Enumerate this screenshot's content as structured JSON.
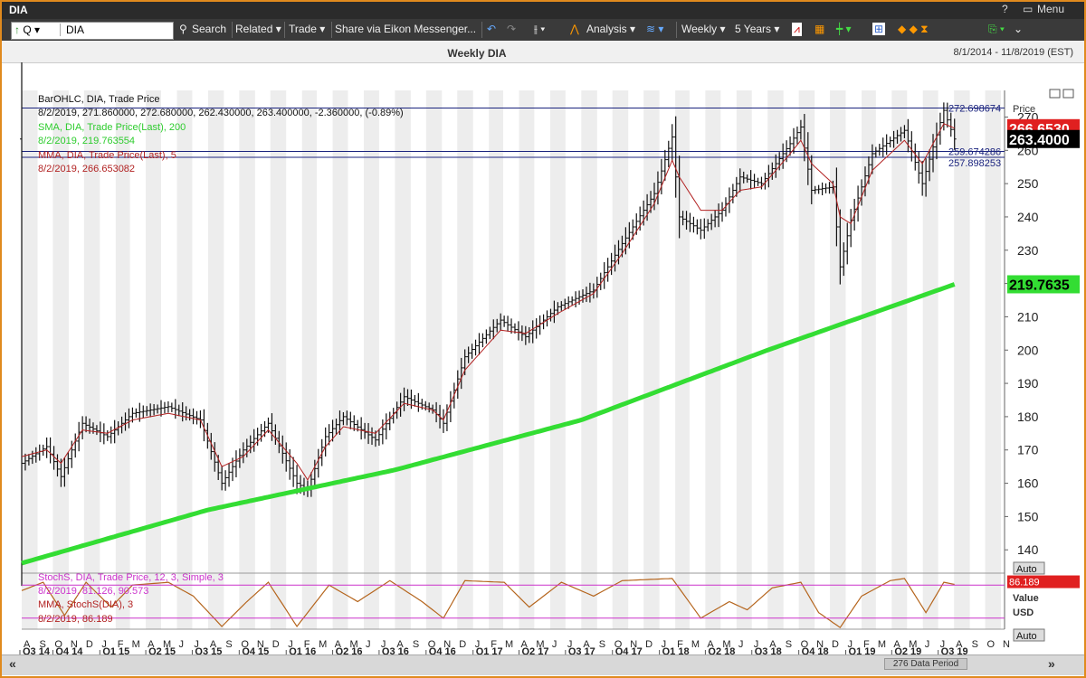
{
  "window": {
    "title": "DIA",
    "menu_label": "Menu",
    "controls": [
      "?",
      "−",
      "□",
      "✕"
    ]
  },
  "toolbar": {
    "ric_prefix": "Q",
    "ric_value": "DIA",
    "search": "Search",
    "related": "Related",
    "trade": "Trade",
    "share": "Share via Eikon Messenger...",
    "analysis": "Analysis",
    "interval": "Weekly",
    "period": "5 Years"
  },
  "chart_header": {
    "title": "Weekly DIA",
    "date_range": "8/1/2014 - 11/8/2019 (EST)"
  },
  "legend_main": {
    "line1": "BarOHLC, DIA, Trade Price",
    "line2": "8/2/2019, 271.860000, 272.680000, 262.430000, 263.400000, -2.360000, (-0.89%)",
    "line3": "SMA, DIA, Trade Price(Last), 200",
    "line4": "8/2/2019, 219.763554",
    "line5": "MMA, DIA, Trade Price(Last), 5",
    "line6": "8/2/2019, 266.653082"
  },
  "legend_stoch": {
    "line1": "StochS, DIA, Trade Price, 12, 3, Simple, 3",
    "line2": "8/2/2019, 81.126, 90.573",
    "line3": "MMA, StochS(DIA), 3",
    "line4": "8/2/2019, 86.189"
  },
  "price_axis": {
    "header": "Price",
    "currency": "USD",
    "ticks": [
      "140",
      "150",
      "160",
      "170",
      "180",
      "190",
      "200",
      "210",
      "220",
      "230",
      "240",
      "250",
      "260",
      "270"
    ],
    "labels": {
      "mma": "266.6530",
      "last": "263.4000",
      "sma": "219.7635",
      "hline1": "272.698674",
      "hline2": "259.674286",
      "hline3": "257.898253"
    },
    "auto": "Auto"
  },
  "stoch_axis": {
    "mma_value": "86.189",
    "value_label": "Value",
    "currency": "USD",
    "auto": "Auto"
  },
  "colors": {
    "price_bars": "#111111",
    "mma": "#b22222",
    "sma": "#33dd33",
    "stoch": "#b5651d",
    "stoch_levels": "#cc33cc",
    "hlines": "#1a237e"
  },
  "footer": {
    "data_period": "276 Data Period"
  },
  "chart_data": {
    "type": "line",
    "title": "Weekly DIA",
    "ylim": [
      133,
      278
    ],
    "yticks": [
      140,
      150,
      160,
      170,
      180,
      190,
      200,
      210,
      220,
      230,
      240,
      250,
      260,
      270
    ],
    "month_ticks": [
      "A",
      "S",
      "O",
      "N",
      "D",
      "J",
      "F",
      "M",
      "A",
      "M",
      "J",
      "J",
      "A",
      "S",
      "O",
      "N",
      "D",
      "J",
      "F",
      "M",
      "A",
      "M",
      "J",
      "J",
      "A",
      "S",
      "O",
      "N",
      "D",
      "J",
      "F",
      "M",
      "A",
      "M",
      "J",
      "J",
      "A",
      "S",
      "O",
      "N",
      "D",
      "J",
      "F",
      "M",
      "A",
      "M",
      "J",
      "J",
      "A",
      "S",
      "O",
      "N",
      "D",
      "J",
      "F",
      "M",
      "A",
      "M",
      "J",
      "J",
      "A",
      "S",
      "O",
      "N"
    ],
    "quarter_labels": [
      "Q3 14",
      "Q4 14",
      "Q1 15",
      "Q2 15",
      "Q3 15",
      "Q4 15",
      "Q1 16",
      "Q2 16",
      "Q3 16",
      "Q4 16",
      "Q1 17",
      "Q2 17",
      "Q3 17",
      "Q4 17",
      "Q1 18",
      "Q2 18",
      "Q3 18",
      "Q4 18",
      "Q1 19",
      "Q2 19",
      "Q3 19"
    ],
    "price_anchors": [
      {
        "date": "2014-08-01",
        "value": 166
      },
      {
        "date": "2014-09-19",
        "value": 171
      },
      {
        "date": "2014-10-17",
        "value": 162
      },
      {
        "date": "2014-11-28",
        "value": 178
      },
      {
        "date": "2015-01-16",
        "value": 174
      },
      {
        "date": "2015-03-06",
        "value": 181
      },
      {
        "date": "2015-05-15",
        "value": 183
      },
      {
        "date": "2015-07-17",
        "value": 179
      },
      {
        "date": "2015-08-28",
        "value": 160
      },
      {
        "date": "2015-10-09",
        "value": 170
      },
      {
        "date": "2015-11-27",
        "value": 178
      },
      {
        "date": "2016-01-22",
        "value": 160
      },
      {
        "date": "2016-02-12",
        "value": 158
      },
      {
        "date": "2016-03-18",
        "value": 174
      },
      {
        "date": "2016-04-22",
        "value": 180
      },
      {
        "date": "2016-06-24",
        "value": 173
      },
      {
        "date": "2016-08-19",
        "value": 186
      },
      {
        "date": "2016-10-14",
        "value": 182
      },
      {
        "date": "2016-11-04",
        "value": 178
      },
      {
        "date": "2016-12-16",
        "value": 198
      },
      {
        "date": "2017-02-24",
        "value": 209
      },
      {
        "date": "2017-04-14",
        "value": 204
      },
      {
        "date": "2017-06-16",
        "value": 213
      },
      {
        "date": "2017-08-25",
        "value": 218
      },
      {
        "date": "2017-10-20",
        "value": 232
      },
      {
        "date": "2017-12-22",
        "value": 247
      },
      {
        "date": "2018-01-26",
        "value": 264
      },
      {
        "date": "2018-02-09",
        "value": 240
      },
      {
        "date": "2018-03-23",
        "value": 236
      },
      {
        "date": "2018-05-04",
        "value": 242
      },
      {
        "date": "2018-06-08",
        "value": 252
      },
      {
        "date": "2018-07-20",
        "value": 250
      },
      {
        "date": "2018-09-14",
        "value": 262
      },
      {
        "date": "2018-10-05",
        "value": 267
      },
      {
        "date": "2018-10-26",
        "value": 248
      },
      {
        "date": "2018-12-07",
        "value": 249
      },
      {
        "date": "2018-12-21",
        "value": 225
      },
      {
        "date": "2019-01-11",
        "value": 239
      },
      {
        "date": "2019-02-22",
        "value": 259
      },
      {
        "date": "2019-04-26",
        "value": 266
      },
      {
        "date": "2019-05-31",
        "value": 250
      },
      {
        "date": "2019-07-12",
        "value": 272
      },
      {
        "date": "2019-08-02",
        "value": 263.4
      }
    ],
    "mma_anchors": [
      {
        "date": "2014-08-01",
        "value": 168
      },
      {
        "date": "2014-09-19",
        "value": 170
      },
      {
        "date": "2014-10-17",
        "value": 166
      },
      {
        "date": "2014-11-28",
        "value": 176
      },
      {
        "date": "2015-01-16",
        "value": 175
      },
      {
        "date": "2015-03-06",
        "value": 179
      },
      {
        "date": "2015-05-15",
        "value": 181
      },
      {
        "date": "2015-07-17",
        "value": 179
      },
      {
        "date": "2015-08-28",
        "value": 165
      },
      {
        "date": "2015-10-09",
        "value": 168
      },
      {
        "date": "2015-11-27",
        "value": 176
      },
      {
        "date": "2016-01-22",
        "value": 166
      },
      {
        "date": "2016-02-12",
        "value": 161
      },
      {
        "date": "2016-03-18",
        "value": 171
      },
      {
        "date": "2016-04-22",
        "value": 177
      },
      {
        "date": "2016-06-24",
        "value": 175
      },
      {
        "date": "2016-08-19",
        "value": 184
      },
      {
        "date": "2016-10-14",
        "value": 182
      },
      {
        "date": "2016-11-04",
        "value": 179
      },
      {
        "date": "2016-12-16",
        "value": 194
      },
      {
        "date": "2017-02-24",
        "value": 206
      },
      {
        "date": "2017-04-14",
        "value": 205
      },
      {
        "date": "2017-06-16",
        "value": 211
      },
      {
        "date": "2017-08-25",
        "value": 217
      },
      {
        "date": "2017-10-20",
        "value": 229
      },
      {
        "date": "2017-12-22",
        "value": 244
      },
      {
        "date": "2018-01-26",
        "value": 257
      },
      {
        "date": "2018-02-09",
        "value": 252
      },
      {
        "date": "2018-03-23",
        "value": 242
      },
      {
        "date": "2018-05-04",
        "value": 242
      },
      {
        "date": "2018-06-08",
        "value": 248
      },
      {
        "date": "2018-07-20",
        "value": 249
      },
      {
        "date": "2018-09-14",
        "value": 259
      },
      {
        "date": "2018-10-05",
        "value": 263
      },
      {
        "date": "2018-10-26",
        "value": 256
      },
      {
        "date": "2018-12-07",
        "value": 250
      },
      {
        "date": "2018-12-21",
        "value": 240
      },
      {
        "date": "2019-01-11",
        "value": 238
      },
      {
        "date": "2019-02-22",
        "value": 254
      },
      {
        "date": "2019-04-26",
        "value": 263
      },
      {
        "date": "2019-05-31",
        "value": 256
      },
      {
        "date": "2019-07-12",
        "value": 268
      },
      {
        "date": "2019-08-02",
        "value": 266.65
      }
    ],
    "sma_200": [
      {
        "date": "2014-08-01",
        "value": 136
      },
      {
        "date": "2015-08-01",
        "value": 152
      },
      {
        "date": "2016-08-01",
        "value": 164
      },
      {
        "date": "2017-08-01",
        "value": 179
      },
      {
        "date": "2018-08-01",
        "value": 200
      },
      {
        "date": "2019-08-02",
        "value": 219.76
      }
    ],
    "stoch_anchors": [
      {
        "date": "2014-08-01",
        "value": 70
      },
      {
        "date": "2014-09-12",
        "value": 85
      },
      {
        "date": "2014-10-24",
        "value": 25
      },
      {
        "date": "2014-12-05",
        "value": 85
      },
      {
        "date": "2015-01-23",
        "value": 40
      },
      {
        "date": "2015-03-06",
        "value": 80
      },
      {
        "date": "2015-05-15",
        "value": 85
      },
      {
        "date": "2015-07-03",
        "value": 60
      },
      {
        "date": "2015-08-28",
        "value": 5
      },
      {
        "date": "2015-10-16",
        "value": 50
      },
      {
        "date": "2015-11-27",
        "value": 85
      },
      {
        "date": "2016-01-22",
        "value": 5
      },
      {
        "date": "2016-03-25",
        "value": 80
      },
      {
        "date": "2016-05-20",
        "value": 50
      },
      {
        "date": "2016-07-22",
        "value": 88
      },
      {
        "date": "2016-09-23",
        "value": 50
      },
      {
        "date": "2016-11-04",
        "value": 20
      },
      {
        "date": "2016-12-16",
        "value": 88
      },
      {
        "date": "2017-03-03",
        "value": 85
      },
      {
        "date": "2017-04-21",
        "value": 40
      },
      {
        "date": "2017-06-23",
        "value": 85
      },
      {
        "date": "2017-08-25",
        "value": 60
      },
      {
        "date": "2017-10-20",
        "value": 88
      },
      {
        "date": "2018-01-26",
        "value": 92
      },
      {
        "date": "2018-03-23",
        "value": 20
      },
      {
        "date": "2018-05-18",
        "value": 50
      },
      {
        "date": "2018-06-22",
        "value": 35
      },
      {
        "date": "2018-08-10",
        "value": 75
      },
      {
        "date": "2018-10-05",
        "value": 85
      },
      {
        "date": "2018-11-09",
        "value": 30
      },
      {
        "date": "2018-12-21",
        "value": 3
      },
      {
        "date": "2019-02-01",
        "value": 60
      },
      {
        "date": "2019-03-29",
        "value": 88
      },
      {
        "date": "2019-04-26",
        "value": 92
      },
      {
        "date": "2019-06-07",
        "value": 30
      },
      {
        "date": "2019-07-12",
        "value": 85
      },
      {
        "date": "2019-08-02",
        "value": 81.1
      }
    ],
    "stoch_levels": [
      80,
      20
    ]
  }
}
